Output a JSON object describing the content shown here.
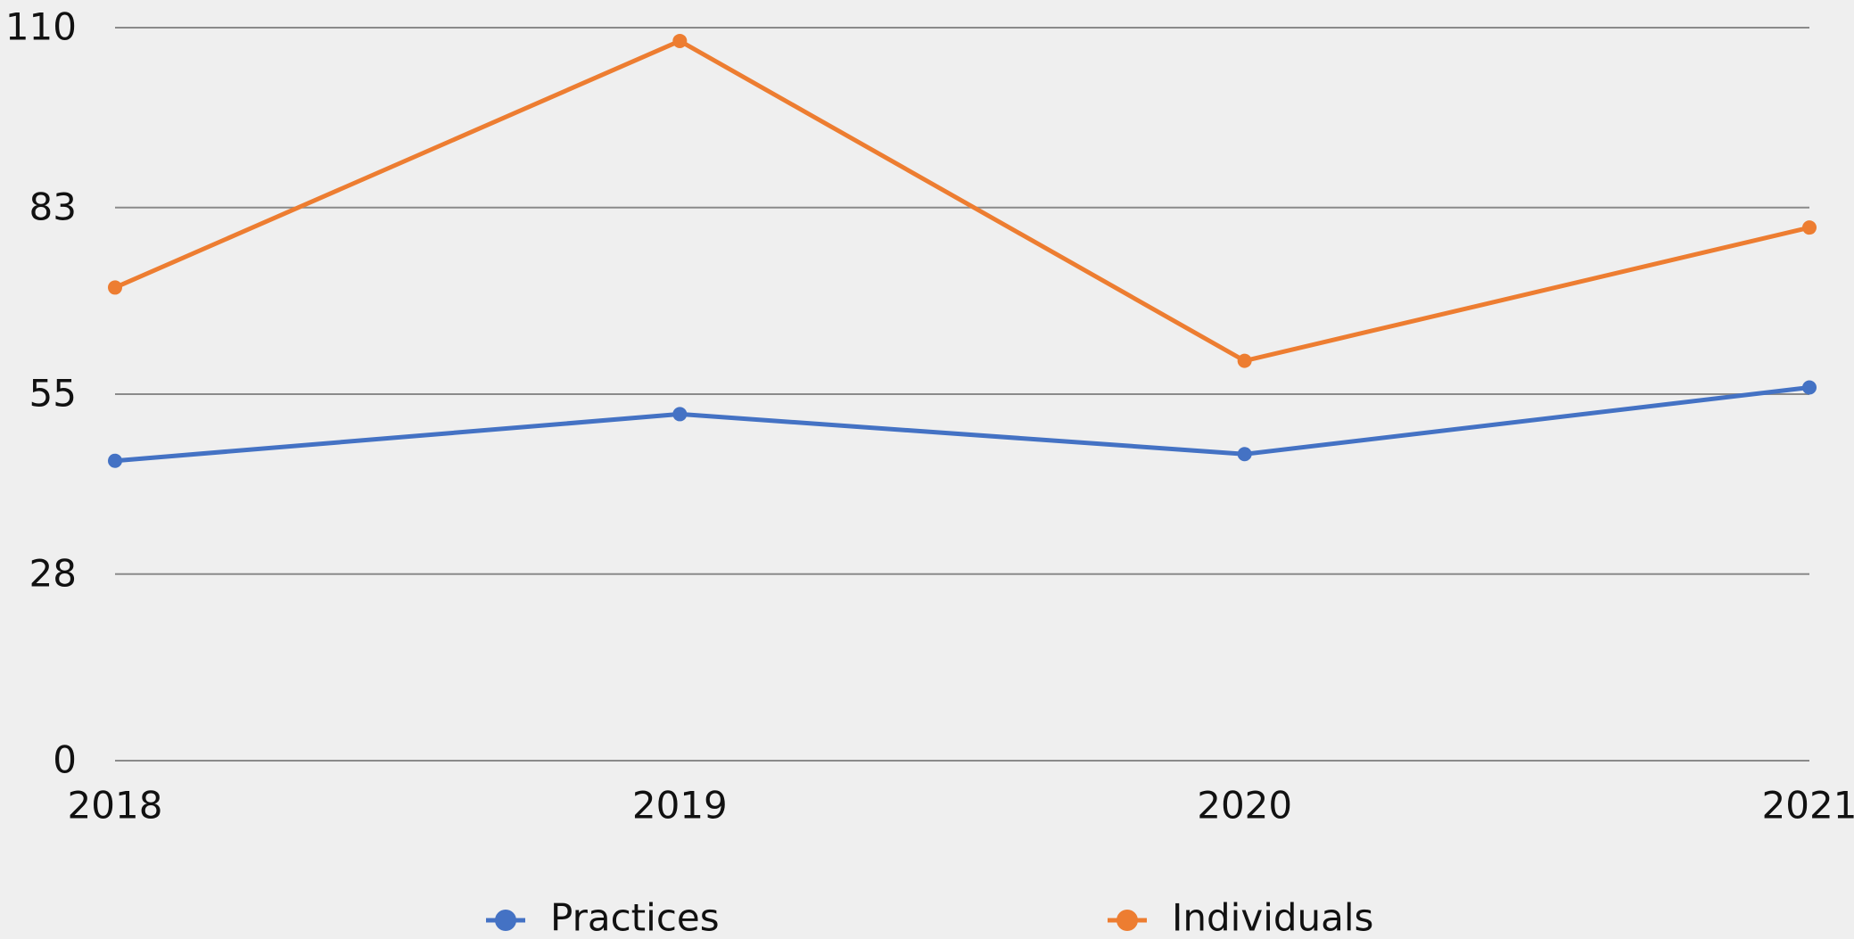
{
  "chart_data": {
    "type": "line",
    "categories": [
      "2018",
      "2019",
      "2020",
      "2021"
    ],
    "series": [
      {
        "name": "Practices",
        "color": "#4472c4",
        "values": [
          45,
          52,
          46,
          56
        ]
      },
      {
        "name": "Individuals",
        "color": "#ed7d31",
        "values": [
          71,
          108,
          60,
          80
        ]
      }
    ],
    "ylim": [
      0,
      110
    ],
    "yticks": [
      0,
      28,
      55,
      83,
      110
    ],
    "grid": true,
    "legend": "bottom"
  }
}
